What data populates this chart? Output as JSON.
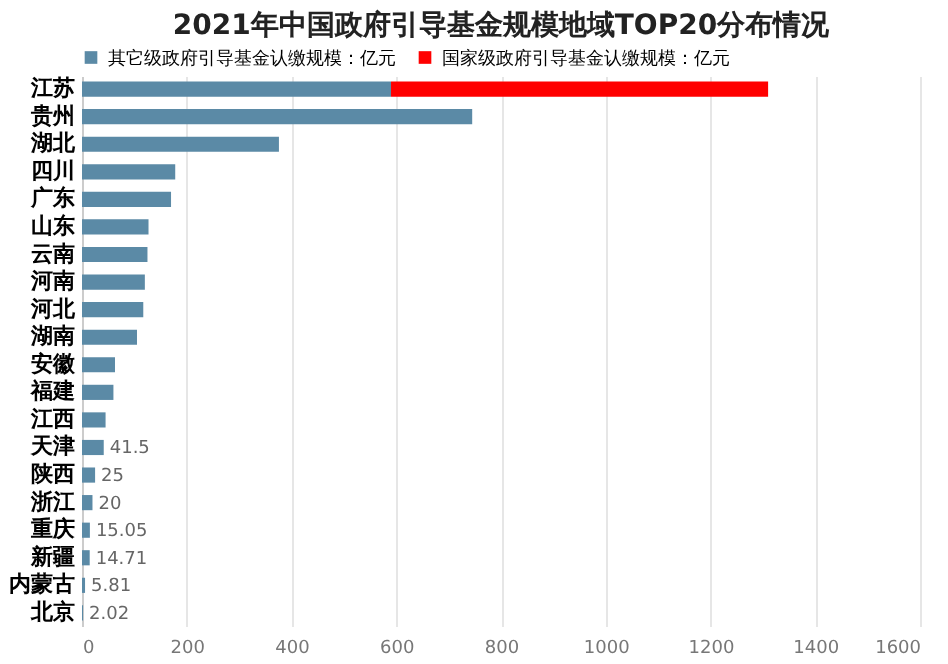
{
  "chart_data": {
    "type": "bar",
    "orientation": "horizontal",
    "stacked": true,
    "title": "2021年中国政府引导基金规模地域TOP20分布情况",
    "categories": [
      "江苏",
      "贵州",
      "湖北",
      "四川",
      "广东",
      "山东",
      "云南",
      "河南",
      "河北",
      "湖南",
      "安徽",
      "福建",
      "江西",
      "天津",
      "陕西",
      "浙江",
      "重庆",
      "新疆",
      "内蒙古",
      "北京"
    ],
    "series": [
      {
        "name": "其它级政府引导基金认缴规模：亿元",
        "color": "#5b8aa6",
        "values": [
          590,
          745,
          376,
          178,
          170,
          127,
          125,
          120,
          117,
          105,
          63,
          60,
          45,
          41.5,
          25,
          20,
          15.05,
          14.71,
          5.81,
          2.02
        ],
        "value_labels": [
          null,
          null,
          null,
          null,
          null,
          null,
          null,
          null,
          null,
          null,
          null,
          null,
          null,
          "41.5",
          "25",
          "20",
          "15.05",
          "14.71",
          "5.81",
          "2.02"
        ]
      },
      {
        "name": "国家级政府引导基金认缴规模：亿元",
        "color": "#ff0000",
        "values": [
          720,
          null,
          null,
          null,
          null,
          null,
          null,
          null,
          null,
          null,
          null,
          null,
          null,
          null,
          null,
          null,
          null,
          null,
          null,
          null
        ]
      }
    ],
    "xlim": [
      0,
      1600
    ],
    "xticks": [
      0,
      200,
      400,
      600,
      800,
      1000,
      1200,
      1400,
      1600
    ],
    "grid": "x",
    "legend": "top"
  }
}
